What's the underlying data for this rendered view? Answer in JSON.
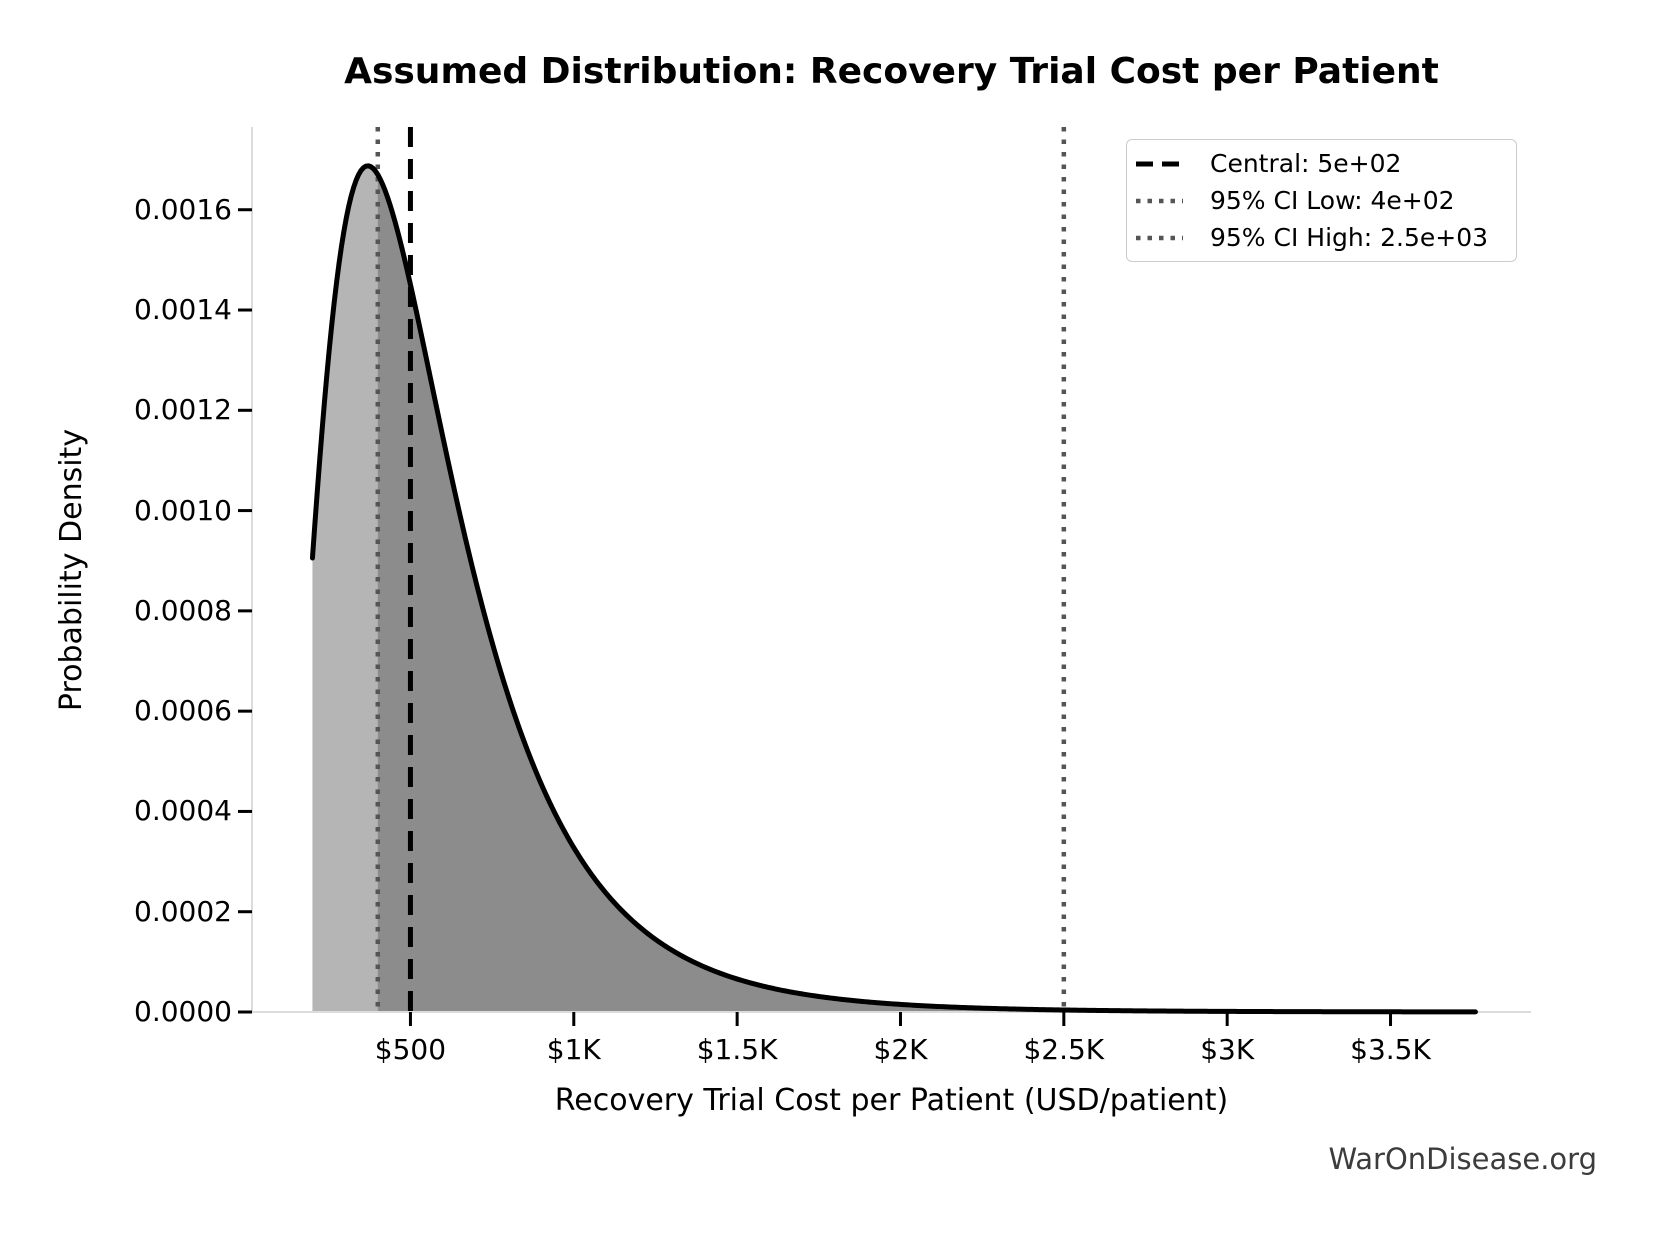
{
  "title": "Assumed Distribution: Recovery Trial Cost per Patient",
  "watermark": "WarOnDisease.org",
  "chart_data": {
    "type": "area",
    "title": "Assumed Distribution: Recovery Trial Cost per Patient",
    "xlabel": "Recovery Trial Cost per Patient (USD/patient)",
    "ylabel": "Probability Density",
    "xlim": [
      15,
      3930
    ],
    "ylim": [
      0,
      0.001765
    ],
    "grid": false,
    "legend_position": "upper right",
    "x_ticks": [
      {
        "value": 500,
        "label": "$500"
      },
      {
        "value": 1000,
        "label": "$1K"
      },
      {
        "value": 1500,
        "label": "$1.5K"
      },
      {
        "value": 2000,
        "label": "$2K"
      },
      {
        "value": 2500,
        "label": "$2.5K"
      },
      {
        "value": 3000,
        "label": "$3K"
      },
      {
        "value": 3500,
        "label": "$3.5K"
      }
    ],
    "y_ticks": [
      {
        "value": 0.0,
        "label": "0.0000"
      },
      {
        "value": 0.0002,
        "label": "0.0002"
      },
      {
        "value": 0.0004,
        "label": "0.0004"
      },
      {
        "value": 0.0006,
        "label": "0.0006"
      },
      {
        "value": 0.0008,
        "label": "0.0008"
      },
      {
        "value": 0.001,
        "label": "0.0010"
      },
      {
        "value": 0.0012,
        "label": "0.0012"
      },
      {
        "value": 0.0014,
        "label": "0.0014"
      },
      {
        "value": 0.0016,
        "label": "0.0016"
      }
    ],
    "distribution": {
      "family": "lognormal",
      "median": 500,
      "sigma": 0.55,
      "mode": 370,
      "peak_density": 0.00169,
      "curve_x_start": 200,
      "curve_x_end": 3760
    },
    "sample_points": [
      [
        200,
        0.00091
      ],
      [
        250,
        0.00127
      ],
      [
        300,
        0.00154
      ],
      [
        370,
        0.00169
      ],
      [
        500,
        0.00145
      ],
      [
        700,
        0.00086
      ],
      [
        1000,
        0.00033
      ],
      [
        1500,
        7e-05
      ],
      [
        2000,
        1.6e-05
      ],
      [
        2500,
        3.5e-06
      ],
      [
        3000,
        9e-07
      ],
      [
        3760,
        1e-07
      ]
    ],
    "ci_band": [
      400,
      2500
    ],
    "vlines": [
      {
        "id": "central",
        "value": 500,
        "style": "dashed",
        "color": "#000000",
        "legend_label": "Central: 5e+02"
      },
      {
        "id": "ci_low",
        "value": 400,
        "style": "dotted",
        "color": "#555555",
        "legend_label": "95% CI Low: 4e+02"
      },
      {
        "id": "ci_high",
        "value": 2500,
        "style": "dotted",
        "color": "#555555",
        "legend_label": "95% CI High: 2.5e+03"
      }
    ],
    "colors": {
      "curve": "#000000",
      "fill_base": "#b5b5b5",
      "fill_ci": "#8c8c8c",
      "spine": "#dcdcdc",
      "tick": "#000000",
      "dotted_line": "#555555",
      "watermark": "#3c3c3c"
    }
  }
}
